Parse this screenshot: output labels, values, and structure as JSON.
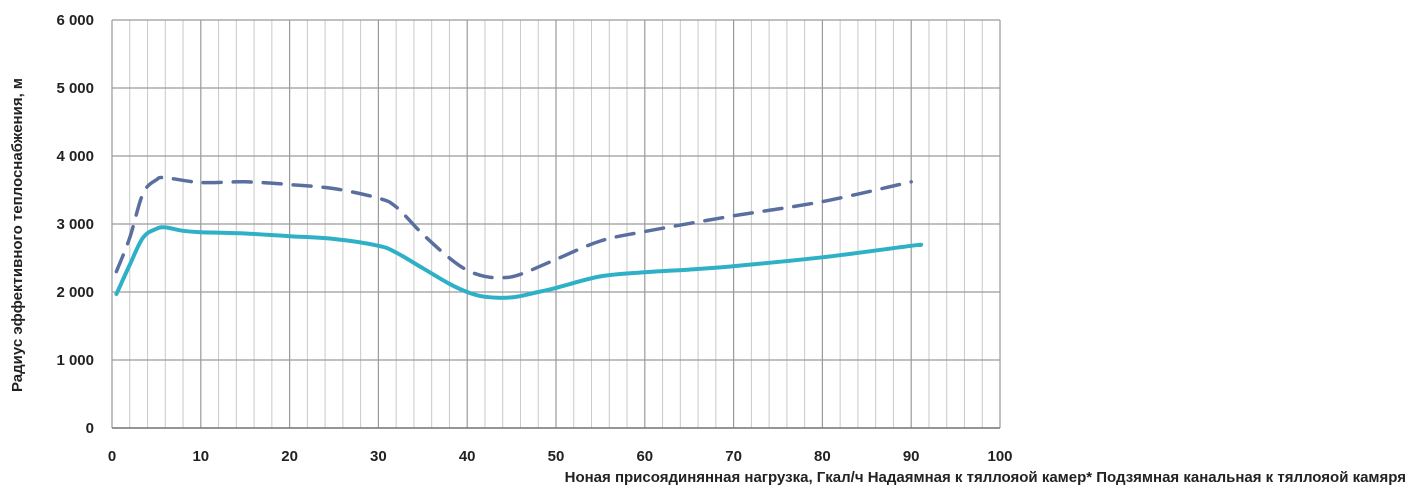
{
  "chart_data": {
    "type": "line",
    "xlabel": "Ноная присоядинянная нагрузка, Гкал/ч Надаямная к тяллояой камер* Подзямная канальная к тяллояой камяря",
    "ylabel": "Радиус эффективного теплоснабжения, м",
    "xlim": [
      0,
      100
    ],
    "ylim": [
      0,
      6000
    ],
    "x_ticks": [
      0,
      10,
      20,
      30,
      40,
      50,
      60,
      70,
      80,
      90,
      100
    ],
    "x_tick_labels": [
      "0",
      "10",
      "20",
      "30",
      "40",
      "50",
      "60",
      "70",
      "80",
      "90",
      "100"
    ],
    "y_ticks": [
      0,
      1000,
      2000,
      3000,
      4000,
      5000,
      6000
    ],
    "y_tick_labels": [
      "0",
      "1 000",
      "2 000",
      "3 000",
      "4 000",
      "5 000",
      "6 000"
    ],
    "grid": true,
    "series": [
      {
        "style": "dashed",
        "color": "#5a6ea0",
        "points": [
          [
            0.5,
            2300
          ],
          [
            2,
            2800
          ],
          [
            3.5,
            3450
          ],
          [
            5,
            3650
          ],
          [
            6,
            3680
          ],
          [
            10,
            3610
          ],
          [
            15,
            3620
          ],
          [
            20,
            3580
          ],
          [
            25,
            3520
          ],
          [
            30,
            3380
          ],
          [
            32,
            3250
          ],
          [
            35,
            2850
          ],
          [
            38,
            2500
          ],
          [
            40,
            2320
          ],
          [
            42,
            2230
          ],
          [
            44,
            2210
          ],
          [
            46,
            2260
          ],
          [
            50,
            2480
          ],
          [
            55,
            2750
          ],
          [
            60,
            2890
          ],
          [
            70,
            3120
          ],
          [
            80,
            3330
          ],
          [
            90,
            3620
          ]
        ]
      },
      {
        "style": "solid",
        "color": "#2eb0c6",
        "points": [
          [
            0.5,
            1970
          ],
          [
            2,
            2400
          ],
          [
            3.5,
            2800
          ],
          [
            5,
            2930
          ],
          [
            6,
            2950
          ],
          [
            8,
            2900
          ],
          [
            10,
            2880
          ],
          [
            15,
            2860
          ],
          [
            20,
            2820
          ],
          [
            25,
            2780
          ],
          [
            30,
            2680
          ],
          [
            32,
            2580
          ],
          [
            35,
            2350
          ],
          [
            38,
            2120
          ],
          [
            40,
            2000
          ],
          [
            42,
            1930
          ],
          [
            45,
            1920
          ],
          [
            48,
            2000
          ],
          [
            50,
            2060
          ],
          [
            55,
            2230
          ],
          [
            60,
            2290
          ],
          [
            65,
            2330
          ],
          [
            70,
            2380
          ],
          [
            80,
            2510
          ],
          [
            90,
            2680
          ],
          [
            91,
            2690
          ]
        ]
      }
    ]
  }
}
